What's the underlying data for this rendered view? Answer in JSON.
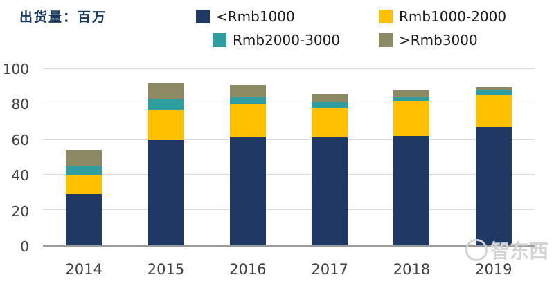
{
  "watermark": "智东西",
  "chart_data": {
    "type": "bar",
    "stacked": true,
    "title": "出货量：百万",
    "categories": [
      "2014",
      "2015",
      "2016",
      "2017",
      "2018",
      "2019"
    ],
    "series": [
      {
        "name": "<Rmb1000",
        "color": "#1F3864",
        "values": [
          29,
          60,
          61,
          61,
          62,
          67
        ]
      },
      {
        "name": "Rmb1000-2000",
        "color": "#FFC000",
        "values": [
          11,
          17,
          19,
          17,
          20,
          18
        ]
      },
      {
        "name": "Rmb2000-3000",
        "color": "#2E9E9E",
        "values": [
          5,
          6,
          4,
          3,
          2,
          3
        ]
      },
      {
        "name": ">Rmb3000",
        "color": "#8C8A64",
        "values": [
          9,
          9,
          7,
          5,
          4,
          2
        ]
      }
    ],
    "ylim": [
      0,
      100
    ],
    "yticks": [
      0,
      20,
      40,
      60,
      80,
      100
    ],
    "grid": true,
    "legend_position": "top",
    "xlabel": "",
    "ylabel": ""
  }
}
